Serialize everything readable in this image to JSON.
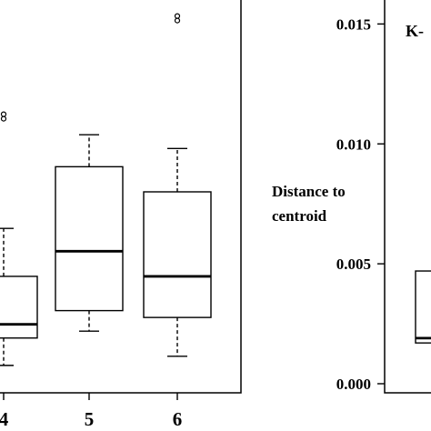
{
  "chart_data": [
    {
      "type": "box",
      "categories": [
        "4",
        "5",
        "6"
      ],
      "boxes": [
        {
          "category": "4",
          "whisker_low": 0.1,
          "q1": 0.22,
          "median": 0.28,
          "q3": 0.49,
          "whisker_high": 0.7,
          "outliers": [
            1.19
          ]
        },
        {
          "category": "5",
          "whisker_low": 0.25,
          "q1": 0.34,
          "median": 0.6,
          "q3": 0.97,
          "whisker_high": 1.11,
          "outliers": []
        },
        {
          "category": "6",
          "whisker_low": 0.14,
          "q1": 0.31,
          "median": 0.49,
          "q3": 0.86,
          "whisker_high": 1.05,
          "outliers": [
            1.62
          ]
        }
      ],
      "ylim": [
        0,
        1.7
      ],
      "grid": false
    },
    {
      "type": "box",
      "title": "K-",
      "ylabel": "Distance to centroid",
      "ylabel_lines": [
        "Distance to",
        "centroid"
      ],
      "yticks": [
        "0.000",
        "0.005",
        "0.010",
        "0.015"
      ],
      "ylim": [
        0,
        0.016
      ],
      "boxes": [
        {
          "q1": 0.0017,
          "median": 0.0019,
          "q3": 0.0047
        }
      ],
      "grid": false
    }
  ]
}
